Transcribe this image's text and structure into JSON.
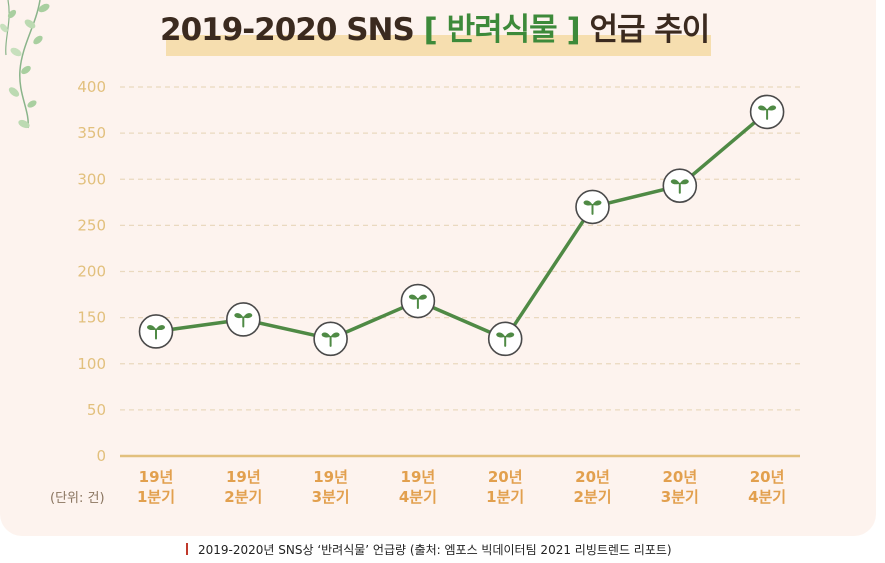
{
  "title": {
    "prefix": "2019-2020 SNS",
    "bracket_open": "[",
    "keyword": "반려식물",
    "bracket_close": "]",
    "suffix": "언급 추이"
  },
  "unit_label": "(단위: 건)",
  "caption": "2019-2020년 SNS상 ‘반려식물’ 언급량 (출처: 엠포스 빅데이터팀 2021 리빙트렌드 리포트)",
  "colors": {
    "line": "#4f8a45",
    "grid": "#ead9bf",
    "axis": "#e2c07d",
    "tick_text": "#e2c07d",
    "category_text": "#e2a04e",
    "marker_fill": "#ffffff",
    "marker_stroke": "#4a4a4a",
    "sprout": "#4f8a45",
    "title_highlight": "#f6deaf",
    "keyword": "#3d8a3a"
  },
  "icons": {
    "marker": "sprout-icon",
    "decoration": "hanging-vine-leaves"
  },
  "chart_data": {
    "type": "line",
    "title": "2019-2020 SNS [ 반려식물 ] 언급 추이",
    "categories": [
      [
        "19년",
        "1분기"
      ],
      [
        "19년",
        "2분기"
      ],
      [
        "19년",
        "3분기"
      ],
      [
        "19년",
        "4분기"
      ],
      [
        "20년",
        "1분기"
      ],
      [
        "20년",
        "2분기"
      ],
      [
        "20년",
        "3분기"
      ],
      [
        "20년",
        "4분기"
      ]
    ],
    "series": [
      {
        "values": [
          135,
          148,
          127,
          168,
          127,
          270,
          293,
          373
        ]
      }
    ],
    "yticks": [
      0,
      50,
      100,
      150,
      200,
      250,
      300,
      350,
      400
    ],
    "ylim": [
      0,
      400
    ],
    "grid": true,
    "ylabel": "(단위: 건)",
    "xlabel": "",
    "legend": "none"
  }
}
